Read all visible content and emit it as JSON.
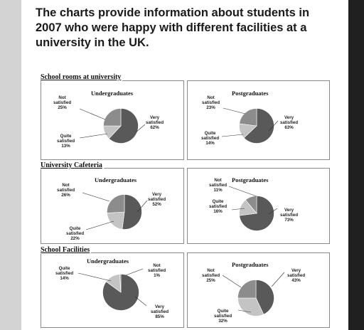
{
  "heading": {
    "line1": "The charts provide information about students in",
    "line2": "2007 who were happy with different facilities at a",
    "line3": "university in the UK."
  },
  "colors": {
    "very_satisfied": "#595959",
    "not_satisfied": "#8c8c8c",
    "quite_satisfied": "#c4c4c4"
  },
  "chart_data": [
    {
      "type": "pie",
      "section": "School rooms at university",
      "title": "Undergraduates",
      "slices": [
        {
          "name": "Very satisfied",
          "line1": "Very",
          "line2": "satisfied",
          "label": "62%",
          "value": 62,
          "color": "#595959"
        },
        {
          "name": "Not satisfied",
          "line1": "Not",
          "line2": "satisfied",
          "label": "25%",
          "value": 25,
          "color": "#8c8c8c"
        },
        {
          "name": "Quite satisfied",
          "line1": "Quite",
          "line2": "satisfied",
          "label": "13%",
          "value": 13,
          "color": "#c4c4c4"
        }
      ]
    },
    {
      "type": "pie",
      "section": "School rooms at university",
      "title": "Postgraduates",
      "slices": [
        {
          "name": "Very satisfied",
          "line1": "Very",
          "line2": "satisfied",
          "label": "63%",
          "value": 63,
          "color": "#595959"
        },
        {
          "name": "Not satisfied",
          "line1": "Not",
          "line2": "satisfied",
          "label": "23%",
          "value": 23,
          "color": "#8c8c8c"
        },
        {
          "name": "Quite satisfied",
          "line1": "Quite",
          "line2": "satisfied",
          "label": "14%",
          "value": 14,
          "color": "#c4c4c4"
        }
      ]
    },
    {
      "type": "pie",
      "section": "University Cafeteria",
      "title": "Undergraduates",
      "slices": [
        {
          "name": "Very satisfied",
          "line1": "Very",
          "line2": "satisfied",
          "label": "52%",
          "value": 52,
          "color": "#595959"
        },
        {
          "name": "Not satisfied",
          "line1": "Not",
          "line2": "satisfied",
          "label": "26%",
          "value": 26,
          "color": "#8c8c8c"
        },
        {
          "name": "Quite satisfied",
          "line1": "Quite",
          "line2": "satisfied",
          "label": "22%",
          "value": 22,
          "color": "#c4c4c4"
        }
      ]
    },
    {
      "type": "pie",
      "section": "University Cafeteria",
      "title": "Postgraduates",
      "slices": [
        {
          "name": "Very satisfied",
          "line1": "Very",
          "line2": "satisfied",
          "label": "73%",
          "value": 73,
          "color": "#595959"
        },
        {
          "name": "Not satisfied",
          "line1": "Not",
          "line2": "satisfied",
          "label": "11%",
          "value": 11,
          "color": "#8c8c8c"
        },
        {
          "name": "Quite satisfied",
          "line1": "Quite",
          "line2": "satisfied",
          "label": "16%",
          "value": 16,
          "color": "#c4c4c4"
        }
      ]
    },
    {
      "type": "pie",
      "section": "School Facilities",
      "title": "Undergraduates",
      "slices": [
        {
          "name": "Very satisfied",
          "line1": "Very",
          "line2": "satisfied",
          "label": "85%",
          "value": 85,
          "color": "#595959"
        },
        {
          "name": "Not satisfied",
          "line1": "Not",
          "line2": "satisfied",
          "label": "1%",
          "value": 1,
          "color": "#8c8c8c"
        },
        {
          "name": "Quite satisfied",
          "line1": "Quite",
          "line2": "satisfied",
          "label": "14%",
          "value": 14,
          "color": "#c4c4c4"
        }
      ]
    },
    {
      "type": "pie",
      "section": "School Facilities",
      "title": "Postgraduates",
      "slices": [
        {
          "name": "Very satisfied",
          "line1": "Very",
          "line2": "satisfied",
          "label": "43%",
          "value": 43,
          "color": "#595959"
        },
        {
          "name": "Not satisfied",
          "line1": "Not",
          "line2": "satisfied",
          "label": "25%",
          "value": 25,
          "color": "#8c8c8c"
        },
        {
          "name": "Quite satisfied",
          "line1": "Quite",
          "line2": "satisfied",
          "label": "32%",
          "value": 32,
          "color": "#c4c4c4"
        }
      ]
    }
  ]
}
